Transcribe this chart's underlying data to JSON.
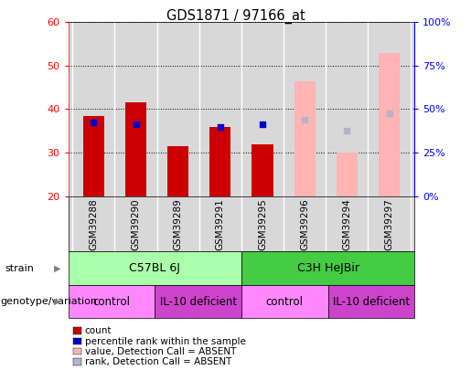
{
  "title": "GDS1871 / 97166_at",
  "samples": [
    "GSM39288",
    "GSM39290",
    "GSM39289",
    "GSM39291",
    "GSM39295",
    "GSM39296",
    "GSM39294",
    "GSM39297"
  ],
  "ylim_left": [
    20,
    60
  ],
  "ylim_right": [
    0,
    100
  ],
  "yticks_left": [
    20,
    30,
    40,
    50,
    60
  ],
  "yticks_right": [
    0,
    25,
    50,
    75,
    100
  ],
  "ytick_labels_right": [
    "0%",
    "25%",
    "50%",
    "75%",
    "100%"
  ],
  "count_values": [
    38.5,
    41.5,
    31.5,
    36.0,
    32.0,
    null,
    null,
    null
  ],
  "rank_values": [
    37.0,
    36.5,
    null,
    36.0,
    36.5,
    null,
    null,
    null
  ],
  "absent_value_values": [
    null,
    null,
    null,
    null,
    null,
    46.5,
    30.0,
    53.0
  ],
  "absent_rank_values": [
    null,
    null,
    null,
    null,
    null,
    37.5,
    35.0,
    39.0
  ],
  "count_color": "#cc0000",
  "rank_color": "#0000cc",
  "absent_value_color": "#ffb3b3",
  "absent_rank_color": "#b3b3cc",
  "bar_width": 0.5,
  "strain_color_left": "#aaffaa",
  "strain_color_right": "#44cc44",
  "geno_color_light": "#ff88ff",
  "geno_color_dark": "#cc44cc",
  "plot_bg_color": "#d8d8d8",
  "legend_items": [
    {
      "label": "count",
      "color": "#cc0000"
    },
    {
      "label": "percentile rank within the sample",
      "color": "#0000cc"
    },
    {
      "label": "value, Detection Call = ABSENT",
      "color": "#ffb3b3"
    },
    {
      "label": "rank, Detection Call = ABSENT",
      "color": "#b3b3cc"
    }
  ],
  "row_label_strain": "strain",
  "row_label_genotype": "genotype/variation",
  "background_color": "#ffffff"
}
